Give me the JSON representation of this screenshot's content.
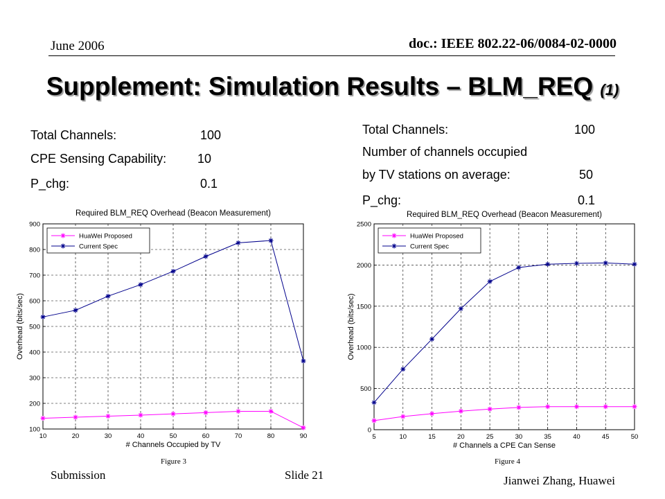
{
  "header": {
    "date": "June 2006",
    "doc": "doc.: IEEE 802.22-06/0084-02-0000"
  },
  "title": {
    "main": "Supplement: Simulation Results – BLM_REQ ",
    "suffix": "(1)"
  },
  "left_params": [
    {
      "label": "Total Channels:",
      "value": "100"
    },
    {
      "label": "CPE Sensing Capability:",
      "value": "10"
    },
    {
      "label": "P_chg:",
      "value": "0.1"
    }
  ],
  "right_params": [
    {
      "label": "Total Channels:",
      "value": "100"
    },
    {
      "label": "Number of channels occupied",
      "value": ""
    },
    {
      "label": "by TV stations on average:",
      "value": "50"
    },
    {
      "label": "P_chg:",
      "value": "0.1"
    }
  ],
  "chart_data": [
    {
      "type": "line",
      "title": "Required BLM_REQ Overhead (Beacon Measurement)",
      "xlabel": "# Channels Occupied by TV",
      "ylabel": "Overhead (bits/sec)",
      "xlim": [
        10,
        90
      ],
      "ylim": [
        100,
        900
      ],
      "xticks": [
        10,
        20,
        30,
        40,
        50,
        60,
        70,
        80,
        90
      ],
      "yticks": [
        100,
        200,
        300,
        400,
        500,
        600,
        700,
        800,
        900
      ],
      "grid": true,
      "legend_position": "top-left",
      "x": [
        10,
        20,
        30,
        40,
        50,
        60,
        70,
        80,
        90
      ],
      "series": [
        {
          "name": "HuaWei Proposed",
          "color": "#ff00ff",
          "values": [
            142,
            146,
            150,
            154,
            159,
            164,
            169,
            169,
            105
          ]
        },
        {
          "name": "Current Spec",
          "color": "#00008b",
          "values": [
            537,
            563,
            618,
            663,
            715,
            773,
            826,
            835,
            365
          ]
        }
      ],
      "figure_label": "Figure 3"
    },
    {
      "type": "line",
      "title": "Required BLM_REQ Overhead (Beacon Measurement)",
      "xlabel": "# Channels a CPE Can Sense",
      "ylabel": "Overhead (bits/sec)",
      "xlim": [
        5,
        50
      ],
      "ylim": [
        0,
        2500
      ],
      "xticks": [
        5,
        10,
        15,
        20,
        25,
        30,
        35,
        40,
        45,
        50
      ],
      "yticks": [
        0,
        500,
        1000,
        1500,
        2000,
        2500
      ],
      "grid": true,
      "legend_position": "top-left",
      "x": [
        5,
        10,
        15,
        20,
        25,
        30,
        35,
        40,
        45,
        50
      ],
      "series": [
        {
          "name": "HuaWei Proposed",
          "color": "#ff00ff",
          "values": [
            110,
            160,
            195,
            225,
            250,
            270,
            280,
            280,
            280,
            280
          ]
        },
        {
          "name": "Current Spec",
          "color": "#00008b",
          "values": [
            330,
            735,
            1100,
            1470,
            1800,
            1970,
            2010,
            2020,
            2025,
            2010
          ]
        }
      ],
      "figure_label": "Figure 4"
    }
  ],
  "footer": {
    "submission": "Submission",
    "slide": "Slide 21",
    "author": "Jianwei Zhang, Huawei"
  }
}
